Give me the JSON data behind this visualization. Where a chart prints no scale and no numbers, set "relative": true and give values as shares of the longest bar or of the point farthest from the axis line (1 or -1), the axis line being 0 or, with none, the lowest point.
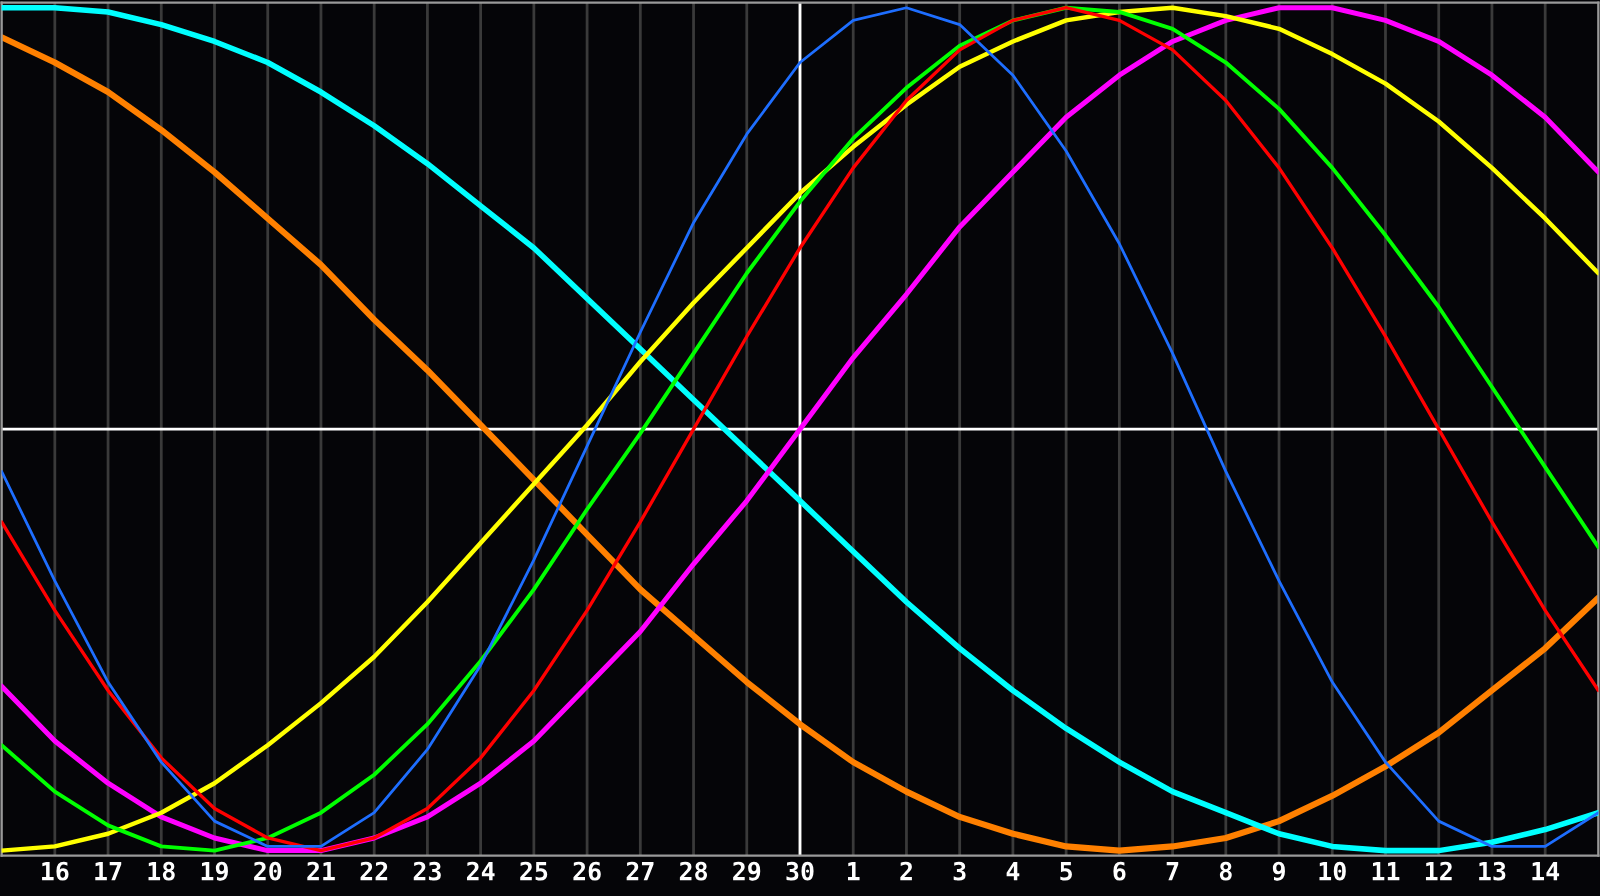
{
  "chart_data": {
    "type": "line",
    "relative": true,
    "grid": "x",
    "categories": [
      null,
      "16",
      "17",
      "18",
      "19",
      "20",
      "21",
      "22",
      "23",
      "24",
      "25",
      "26",
      "27",
      "28",
      "29",
      "30",
      "1",
      "2",
      "3",
      "4",
      "5",
      "6",
      "7",
      "8",
      "9",
      "10",
      "11",
      "12",
      "13",
      "14",
      null
    ],
    "ref_lines": [
      {
        "axis": "x",
        "value": "30",
        "color": "#ffffff"
      }
    ],
    "series": [
      {
        "color": "#ff8000",
        "values": [
          0.93,
          0.87,
          0.8,
          0.71,
          0.61,
          0.5,
          0.39,
          0.26,
          0.14,
          0.01,
          -0.12,
          -0.25,
          -0.38,
          -0.49,
          -0.6,
          -0.7,
          -0.79,
          -0.86,
          -0.92,
          -0.96,
          -0.99,
          -1.0,
          -0.99,
          -0.97,
          -0.93,
          -0.87,
          -0.8,
          -0.72,
          -0.62,
          -0.52,
          -0.4
        ]
      },
      {
        "color": "#00ffff",
        "values": [
          1.0,
          1.0,
          0.99,
          0.96,
          0.92,
          0.87,
          0.8,
          0.72,
          0.63,
          0.53,
          0.43,
          0.31,
          0.19,
          0.07,
          -0.05,
          -0.17,
          -0.29,
          -0.41,
          -0.52,
          -0.62,
          -0.71,
          -0.79,
          -0.86,
          -0.91,
          -0.96,
          -0.99,
          -1.0,
          -1.0,
          -0.98,
          -0.95,
          -0.91
        ]
      },
      {
        "color": "#ff00ff",
        "values": [
          -0.61,
          -0.74,
          -0.84,
          -0.92,
          -0.97,
          -1.0,
          -1.0,
          -0.97,
          -0.92,
          -0.84,
          -0.74,
          -0.61,
          -0.48,
          -0.32,
          -0.17,
          0.0,
          0.17,
          0.32,
          0.48,
          0.61,
          0.74,
          0.84,
          0.92,
          0.97,
          1.0,
          1.0,
          0.97,
          0.92,
          0.84,
          0.74,
          0.61
        ]
      },
      {
        "color": "#ffff00",
        "values": [
          -1.0,
          -0.99,
          -0.96,
          -0.91,
          -0.84,
          -0.75,
          -0.65,
          -0.54,
          -0.41,
          -0.27,
          -0.13,
          0.01,
          0.16,
          0.3,
          0.43,
          0.56,
          0.67,
          0.77,
          0.86,
          0.92,
          0.97,
          0.99,
          1.0,
          0.98,
          0.95,
          0.89,
          0.82,
          0.73,
          0.62,
          0.5,
          0.37
        ]
      },
      {
        "color": "#00ff00",
        "values": [
          -0.75,
          -0.86,
          -0.94,
          -0.99,
          -1.0,
          -0.97,
          -0.91,
          -0.82,
          -0.7,
          -0.55,
          -0.38,
          -0.19,
          -0.01,
          0.18,
          0.37,
          0.54,
          0.69,
          0.81,
          0.91,
          0.97,
          1.0,
          0.99,
          0.95,
          0.87,
          0.76,
          0.62,
          0.46,
          0.29,
          0.1,
          -0.09,
          -0.28
        ]
      },
      {
        "color": "#ff0000",
        "values": [
          -0.22,
          -0.43,
          -0.62,
          -0.78,
          -0.9,
          -0.97,
          -1.0,
          -0.97,
          -0.9,
          -0.78,
          -0.62,
          -0.43,
          -0.22,
          0.0,
          0.22,
          0.43,
          0.62,
          0.78,
          0.9,
          0.97,
          1.0,
          0.97,
          0.9,
          0.78,
          0.62,
          0.43,
          0.22,
          0.0,
          -0.22,
          -0.43,
          -0.62
        ]
      },
      {
        "color": "#1e6eff",
        "values": [
          -0.1,
          -0.36,
          -0.6,
          -0.79,
          -0.93,
          -0.99,
          -0.99,
          -0.91,
          -0.76,
          -0.56,
          -0.31,
          -0.04,
          0.23,
          0.49,
          0.7,
          0.87,
          0.97,
          1.0,
          0.96,
          0.84,
          0.66,
          0.44,
          0.18,
          -0.1,
          -0.36,
          -0.6,
          -0.79,
          -0.93,
          -0.99,
          -0.99,
          -0.91
        ]
      }
    ]
  }
}
